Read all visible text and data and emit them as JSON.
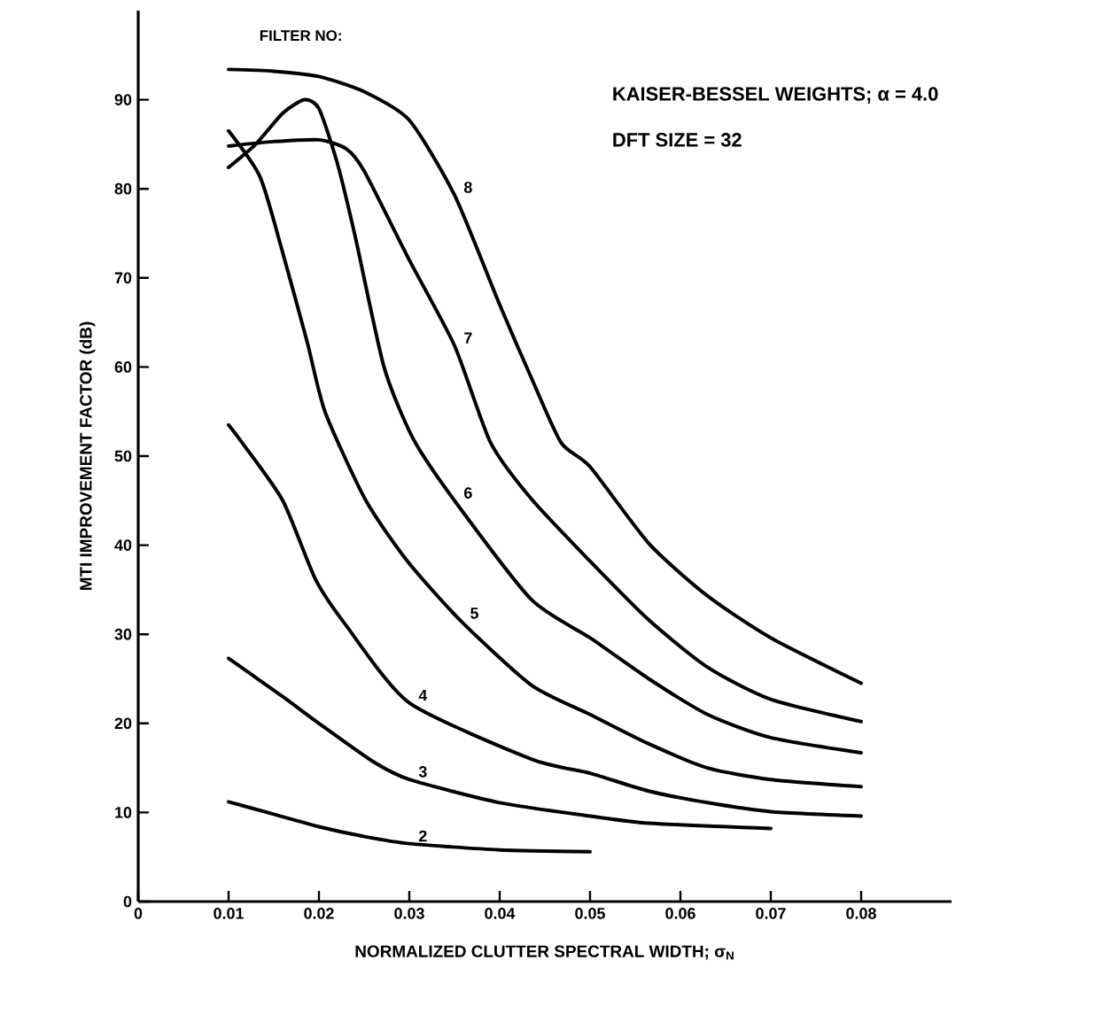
{
  "chart_data": {
    "type": "line",
    "xlabel": "NORMALIZED CLUTTER SPECTRAL WIDTH; σ$_{N}$",
    "ylabel": "MTI IMPROVEMENT FACTOR (dB)",
    "annotations": [
      "FILTER NO:",
      "KAISER-BESSEL WEIGHTS; α = 4.0",
      "DFT SIZE = 32"
    ],
    "xlim": [
      0,
      0.09
    ],
    "ylim": [
      0,
      100
    ],
    "xticks": [
      0,
      0.01,
      0.02,
      0.03,
      0.04,
      0.05,
      0.06,
      0.07,
      0.08
    ],
    "yticks": [
      0,
      10,
      20,
      30,
      40,
      50,
      60,
      70,
      80,
      90
    ],
    "grid": false,
    "line_style": "solid",
    "series": [
      {
        "name": "2",
        "color": "#000000",
        "x": [
          0.01,
          0.015,
          0.02,
          0.025,
          0.03,
          0.04,
          0.05
        ],
        "values": [
          11.2,
          9.8,
          8.4,
          7.3,
          6.5,
          5.8,
          5.6
        ]
      },
      {
        "name": "3",
        "color": "#000000",
        "x": [
          0.01,
          0.016,
          0.02,
          0.026,
          0.03,
          0.04,
          0.05,
          0.0565,
          0.07
        ],
        "values": [
          27.3,
          23,
          20,
          15.7,
          13.7,
          11.1,
          9.6,
          8.8,
          8.2
        ]
      },
      {
        "name": "4",
        "color": "#000000",
        "x": [
          0.01,
          0.0115,
          0.016,
          0.0196,
          0.023,
          0.03,
          0.0435,
          0.05,
          0.0565,
          0.063,
          0.07,
          0.08
        ],
        "values": [
          53.5,
          51.5,
          45,
          36.2,
          31,
          22.3,
          16,
          14.4,
          12.4,
          11.1,
          10.1,
          9.6
        ]
      },
      {
        "name": "5",
        "color": "#000000",
        "x": [
          0.01,
          0.0135,
          0.016,
          0.0187,
          0.0207,
          0.0252,
          0.0298,
          0.0357,
          0.0435,
          0.05,
          0.0565,
          0.063,
          0.07,
          0.08
        ],
        "values": [
          86.5,
          81.3,
          72.8,
          62.8,
          54.9,
          45,
          38.2,
          31.5,
          24.3,
          21,
          17.7,
          15,
          13.7,
          12.9
        ]
      },
      {
        "name": "6",
        "color": "#000000",
        "x": [
          0.01,
          0.013,
          0.016,
          0.0184,
          0.02,
          0.022,
          0.024,
          0.0272,
          0.0304,
          0.035,
          0.0435,
          0.05,
          0.0565,
          0.063,
          0.07,
          0.08
        ],
        "values": [
          82.4,
          85,
          88.5,
          90,
          89,
          83,
          74.7,
          60,
          52,
          45,
          33.9,
          29.6,
          25,
          21,
          18.4,
          16.7
        ]
      },
      {
        "name": "7",
        "color": "#000000",
        "x": [
          0.01,
          0.015,
          0.02,
          0.023,
          0.025,
          0.03,
          0.035,
          0.039,
          0.0435,
          0.05,
          0.0565,
          0.063,
          0.07,
          0.08
        ],
        "values": [
          84.8,
          85.3,
          85.5,
          84.5,
          82,
          72,
          62.4,
          51.5,
          45.2,
          38.2,
          31.6,
          26.3,
          22.7,
          20.2
        ]
      },
      {
        "name": "8",
        "color": "#000000",
        "x": [
          0.01,
          0.015,
          0.02,
          0.025,
          0.03,
          0.035,
          0.04,
          0.0435,
          0.0468,
          0.05,
          0.0565,
          0.063,
          0.07,
          0.08
        ],
        "values": [
          93.4,
          93.2,
          92.6,
          90.9,
          87.7,
          79.3,
          67,
          58.8,
          51.5,
          48.8,
          40.2,
          34.3,
          29.6,
          24.5
        ]
      }
    ]
  }
}
